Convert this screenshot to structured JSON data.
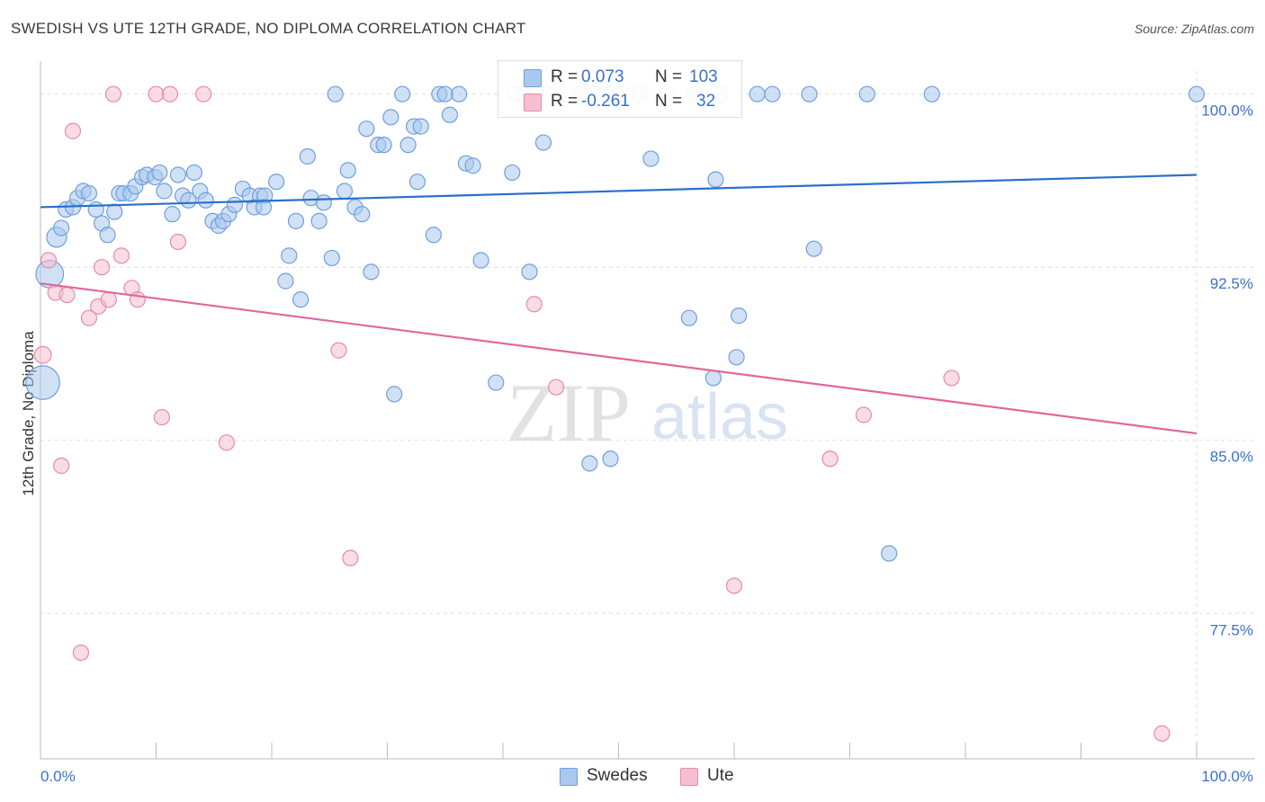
{
  "header": {
    "title": "SWEDISH VS UTE 12TH GRADE, NO DIPLOMA CORRELATION CHART",
    "source": "Source: ZipAtlas.com"
  },
  "legend": {
    "rows": [
      {
        "r_label": "R =",
        "r_value": "0.073",
        "n_label": "N =",
        "n_value": "103"
      },
      {
        "r_label": "R =",
        "r_value": "-0.261",
        "n_label": "N =",
        "n_value": "32"
      }
    ]
  },
  "bottom_legend": [
    "Swedes",
    "Ute"
  ],
  "watermark": {
    "zip": "ZIP",
    "atlas": "atlas"
  },
  "colors": {
    "swedes_fill": "#aac8ee",
    "swedes_stroke": "#6f9fdc",
    "swedes_line": "#2a6fcb",
    "ute_fill": "#f6bfd0",
    "ute_stroke": "#e88aa9",
    "ute_line": "#e0679a",
    "tick_label": "#3a6fd0",
    "grid": "#dddddd"
  },
  "chart_data": {
    "type": "scatter",
    "title": "SWEDISH VS UTE 12TH GRADE, NO DIPLOMA CORRELATION CHART",
    "xlabel": "",
    "ylabel": "12th Grade, No Diploma",
    "xlim": [
      0,
      100
    ],
    "ylim": [
      71.2,
      101.0
    ],
    "x_tick_labels": [
      "0.0%",
      "100.0%"
    ],
    "y_ticks": [
      100.0,
      92.5,
      85.0,
      77.5
    ],
    "y_tick_labels": [
      "100.0%",
      "92.5%",
      "85.0%",
      "77.5%"
    ],
    "grid": true,
    "legend_position": "top-center",
    "series": [
      {
        "name": "Swedes",
        "trend": {
          "x": [
            0,
            100
          ],
          "y": [
            95.1,
            96.5
          ]
        },
        "points": [
          {
            "x": 0.2,
            "y": 87.5,
            "s": 2.2
          },
          {
            "x": 0.8,
            "y": 92.2,
            "s": 1.8
          },
          {
            "x": 1.4,
            "y": 93.8,
            "s": 1.3
          },
          {
            "x": 1.8,
            "y": 94.2,
            "s": 1
          },
          {
            "x": 2.2,
            "y": 95.0,
            "s": 1
          },
          {
            "x": 2.8,
            "y": 95.1,
            "s": 1
          },
          {
            "x": 3.2,
            "y": 95.5,
            "s": 1
          },
          {
            "x": 3.7,
            "y": 95.8,
            "s": 1
          },
          {
            "x": 4.2,
            "y": 95.7,
            "s": 1
          },
          {
            "x": 4.8,
            "y": 95.0,
            "s": 1
          },
          {
            "x": 5.3,
            "y": 94.4,
            "s": 1
          },
          {
            "x": 5.8,
            "y": 93.9,
            "s": 1
          },
          {
            "x": 6.4,
            "y": 94.9,
            "s": 1
          },
          {
            "x": 6.8,
            "y": 95.7,
            "s": 1
          },
          {
            "x": 7.2,
            "y": 95.7,
            "s": 1
          },
          {
            "x": 7.8,
            "y": 95.7,
            "s": 1
          },
          {
            "x": 8.2,
            "y": 96.0,
            "s": 1
          },
          {
            "x": 8.8,
            "y": 96.4,
            "s": 1
          },
          {
            "x": 9.2,
            "y": 96.5,
            "s": 1
          },
          {
            "x": 9.9,
            "y": 96.4,
            "s": 1
          },
          {
            "x": 10.3,
            "y": 96.6,
            "s": 1
          },
          {
            "x": 10.7,
            "y": 95.8,
            "s": 1
          },
          {
            "x": 11.4,
            "y": 94.8,
            "s": 1
          },
          {
            "x": 11.9,
            "y": 96.5,
            "s": 1
          },
          {
            "x": 12.3,
            "y": 95.6,
            "s": 1
          },
          {
            "x": 12.8,
            "y": 95.4,
            "s": 1
          },
          {
            "x": 13.3,
            "y": 96.6,
            "s": 1
          },
          {
            "x": 13.8,
            "y": 95.8,
            "s": 1
          },
          {
            "x": 14.3,
            "y": 95.4,
            "s": 1
          },
          {
            "x": 14.9,
            "y": 94.5,
            "s": 1
          },
          {
            "x": 15.4,
            "y": 94.3,
            "s": 1
          },
          {
            "x": 15.8,
            "y": 94.5,
            "s": 1
          },
          {
            "x": 16.3,
            "y": 94.8,
            "s": 1
          },
          {
            "x": 16.8,
            "y": 95.2,
            "s": 1
          },
          {
            "x": 17.5,
            "y": 95.9,
            "s": 1
          },
          {
            "x": 18.1,
            "y": 95.6,
            "s": 1
          },
          {
            "x": 18.5,
            "y": 95.1,
            "s": 1
          },
          {
            "x": 19.0,
            "y": 95.6,
            "s": 1
          },
          {
            "x": 19.4,
            "y": 95.6,
            "s": 1
          },
          {
            "x": 19.3,
            "y": 95.1,
            "s": 1
          },
          {
            "x": 20.4,
            "y": 96.2,
            "s": 1
          },
          {
            "x": 21.5,
            "y": 93.0,
            "s": 1
          },
          {
            "x": 21.2,
            "y": 91.9,
            "s": 1
          },
          {
            "x": 22.1,
            "y": 94.5,
            "s": 1
          },
          {
            "x": 22.5,
            "y": 91.1,
            "s": 1
          },
          {
            "x": 23.1,
            "y": 97.3,
            "s": 1
          },
          {
            "x": 23.4,
            "y": 95.5,
            "s": 1
          },
          {
            "x": 24.1,
            "y": 94.5,
            "s": 1
          },
          {
            "x": 24.5,
            "y": 95.3,
            "s": 1
          },
          {
            "x": 25.2,
            "y": 92.9,
            "s": 1
          },
          {
            "x": 25.5,
            "y": 100.0,
            "s": 1
          },
          {
            "x": 26.3,
            "y": 95.8,
            "s": 1
          },
          {
            "x": 26.6,
            "y": 96.7,
            "s": 1
          },
          {
            "x": 27.2,
            "y": 95.1,
            "s": 1
          },
          {
            "x": 27.8,
            "y": 94.8,
            "s": 1
          },
          {
            "x": 28.2,
            "y": 98.5,
            "s": 1
          },
          {
            "x": 28.6,
            "y": 92.3,
            "s": 1
          },
          {
            "x": 29.2,
            "y": 97.8,
            "s": 1
          },
          {
            "x": 29.7,
            "y": 97.8,
            "s": 1
          },
          {
            "x": 30.3,
            "y": 99.0,
            "s": 1
          },
          {
            "x": 30.6,
            "y": 87.0,
            "s": 1
          },
          {
            "x": 31.3,
            "y": 100.0,
            "s": 1
          },
          {
            "x": 31.8,
            "y": 97.8,
            "s": 1
          },
          {
            "x": 32.3,
            "y": 98.6,
            "s": 1
          },
          {
            "x": 32.6,
            "y": 96.2,
            "s": 1
          },
          {
            "x": 32.9,
            "y": 98.6,
            "s": 1
          },
          {
            "x": 34.0,
            "y": 93.9,
            "s": 1
          },
          {
            "x": 34.5,
            "y": 100.0,
            "s": 1
          },
          {
            "x": 35.0,
            "y": 100.0,
            "s": 1
          },
          {
            "x": 35.4,
            "y": 99.1,
            "s": 1
          },
          {
            "x": 36.2,
            "y": 100.0,
            "s": 1
          },
          {
            "x": 36.8,
            "y": 97.0,
            "s": 1
          },
          {
            "x": 37.4,
            "y": 96.9,
            "s": 1
          },
          {
            "x": 38.1,
            "y": 92.8,
            "s": 1
          },
          {
            "x": 39.4,
            "y": 87.5,
            "s": 1
          },
          {
            "x": 40.8,
            "y": 96.6,
            "s": 1
          },
          {
            "x": 41.0,
            "y": 100.0,
            "s": 1
          },
          {
            "x": 41.8,
            "y": 100.0,
            "s": 1
          },
          {
            "x": 42.3,
            "y": 92.3,
            "s": 1
          },
          {
            "x": 42.8,
            "y": 100.0,
            "s": 1
          },
          {
            "x": 43.5,
            "y": 97.9,
            "s": 1
          },
          {
            "x": 44.0,
            "y": 100.0,
            "s": 1
          },
          {
            "x": 45.5,
            "y": 100.0,
            "s": 1
          },
          {
            "x": 46.7,
            "y": 100.0,
            "s": 1
          },
          {
            "x": 47.5,
            "y": 84.0,
            "s": 1
          },
          {
            "x": 47.9,
            "y": 100.0,
            "s": 1
          },
          {
            "x": 49.3,
            "y": 100.0,
            "s": 1
          },
          {
            "x": 49.3,
            "y": 84.2,
            "s": 1
          },
          {
            "x": 51.8,
            "y": 100.0,
            "s": 1
          },
          {
            "x": 52.8,
            "y": 97.2,
            "s": 1
          },
          {
            "x": 54.2,
            "y": 100.0,
            "s": 1
          },
          {
            "x": 56.1,
            "y": 90.3,
            "s": 1
          },
          {
            "x": 56.6,
            "y": 100.0,
            "s": 1
          },
          {
            "x": 58.2,
            "y": 87.7,
            "s": 1
          },
          {
            "x": 58.4,
            "y": 96.3,
            "s": 1
          },
          {
            "x": 58.8,
            "y": 100.0,
            "s": 1
          },
          {
            "x": 60.2,
            "y": 88.6,
            "s": 1
          },
          {
            "x": 60.4,
            "y": 90.4,
            "s": 1
          },
          {
            "x": 62.0,
            "y": 100.0,
            "s": 1
          },
          {
            "x": 63.3,
            "y": 100.0,
            "s": 1
          },
          {
            "x": 66.5,
            "y": 100.0,
            "s": 1
          },
          {
            "x": 66.9,
            "y": 93.3,
            "s": 1
          },
          {
            "x": 73.4,
            "y": 80.1,
            "s": 1
          },
          {
            "x": 71.5,
            "y": 100.0,
            "s": 1
          },
          {
            "x": 77.1,
            "y": 100.0,
            "s": 1
          },
          {
            "x": 100.0,
            "y": 100.0,
            "s": 1
          }
        ]
      },
      {
        "name": "Ute",
        "trend": {
          "x": [
            0,
            100
          ],
          "y": [
            91.8,
            85.3
          ]
        },
        "points": [
          {
            "x": 0.2,
            "y": 88.7,
            "s": 1.1
          },
          {
            "x": 0.7,
            "y": 92.8,
            "s": 1
          },
          {
            "x": 1.3,
            "y": 91.4,
            "s": 1
          },
          {
            "x": 1.8,
            "y": 83.9,
            "s": 1
          },
          {
            "x": 2.3,
            "y": 91.3,
            "s": 1
          },
          {
            "x": 2.8,
            "y": 98.4,
            "s": 1
          },
          {
            "x": 3.5,
            "y": 75.8,
            "s": 1
          },
          {
            "x": 4.2,
            "y": 90.3,
            "s": 1
          },
          {
            "x": 5.0,
            "y": 90.8,
            "s": 1
          },
          {
            "x": 5.3,
            "y": 92.5,
            "s": 1
          },
          {
            "x": 5.9,
            "y": 91.1,
            "s": 1
          },
          {
            "x": 6.3,
            "y": 100.0,
            "s": 1
          },
          {
            "x": 7.0,
            "y": 93.0,
            "s": 1
          },
          {
            "x": 7.9,
            "y": 91.6,
            "s": 1
          },
          {
            "x": 8.4,
            "y": 91.1,
            "s": 1
          },
          {
            "x": 10.0,
            "y": 100.0,
            "s": 1
          },
          {
            "x": 10.5,
            "y": 86.0,
            "s": 1
          },
          {
            "x": 11.2,
            "y": 100.0,
            "s": 1
          },
          {
            "x": 11.9,
            "y": 93.6,
            "s": 1
          },
          {
            "x": 14.1,
            "y": 100.0,
            "s": 1
          },
          {
            "x": 16.1,
            "y": 84.9,
            "s": 1
          },
          {
            "x": 25.8,
            "y": 88.9,
            "s": 1
          },
          {
            "x": 26.8,
            "y": 79.9,
            "s": 1
          },
          {
            "x": 42.7,
            "y": 90.9,
            "s": 1
          },
          {
            "x": 44.6,
            "y": 87.3,
            "s": 1
          },
          {
            "x": 46.7,
            "y": 100.0,
            "s": 1
          },
          {
            "x": 50.3,
            "y": 100.0,
            "s": 1
          },
          {
            "x": 60.0,
            "y": 78.7,
            "s": 1
          },
          {
            "x": 68.3,
            "y": 84.2,
            "s": 1
          },
          {
            "x": 71.2,
            "y": 86.1,
            "s": 1
          },
          {
            "x": 78.8,
            "y": 87.7,
            "s": 1
          },
          {
            "x": 97.0,
            "y": 72.3,
            "s": 1
          }
        ]
      }
    ]
  }
}
